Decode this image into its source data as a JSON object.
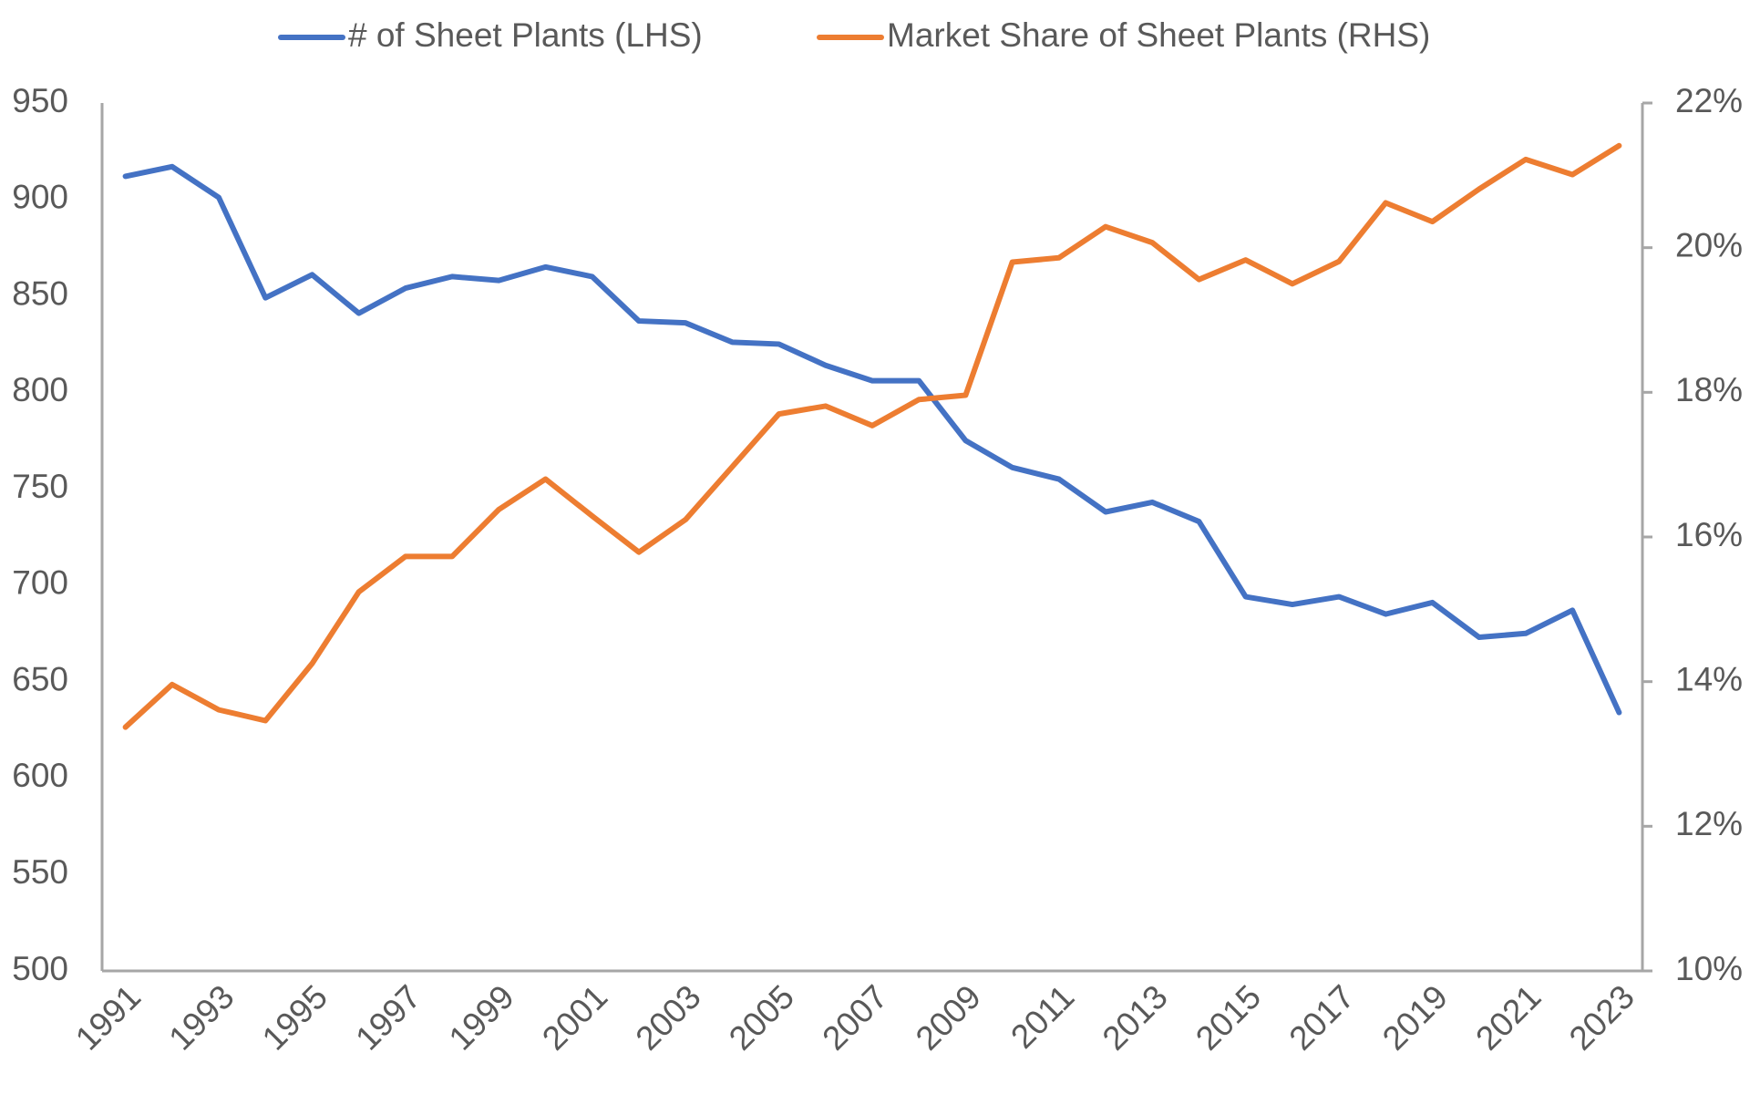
{
  "chart_data": {
    "type": "line",
    "categories": [
      "1991",
      null,
      "1993",
      null,
      "1995",
      null,
      "1997",
      null,
      "1999",
      null,
      "2001",
      null,
      "2003",
      null,
      "2005",
      null,
      "2007",
      null,
      "2009",
      null,
      "2011",
      null,
      "2013",
      null,
      "2015",
      null,
      "2017",
      null,
      "2019",
      null,
      "2021",
      null,
      "2023"
    ],
    "series": [
      {
        "name": "# of Sheet Plants (LHS)",
        "color": "#4472c4",
        "axis": "y",
        "values": [
          912,
          917,
          901,
          849,
          861,
          841,
          854,
          860,
          858,
          865,
          860,
          837,
          836,
          826,
          825,
          814,
          806,
          806,
          775,
          761,
          755,
          738,
          743,
          733,
          694,
          690,
          694,
          685,
          691,
          673,
          675,
          687,
          634
        ]
      },
      {
        "name": "Market Share of Sheet Plants (RHS)",
        "color": "#ed7d31",
        "axis": "y2",
        "values": [
          13.37,
          13.96,
          13.61,
          13.46,
          14.25,
          15.24,
          15.73,
          15.73,
          16.38,
          16.8,
          16.29,
          15.79,
          16.24,
          16.97,
          17.7,
          17.81,
          17.54,
          17.9,
          17.96,
          19.8,
          19.86,
          20.29,
          20.07,
          19.56,
          19.83,
          19.5,
          19.81,
          20.62,
          20.36,
          20.81,
          21.22,
          21.01,
          21.41
        ]
      }
    ],
    "ylim": [
      500,
      950
    ],
    "yticks": [
      500,
      550,
      600,
      650,
      700,
      750,
      800,
      850,
      900,
      950
    ],
    "y2lim": [
      10,
      22
    ],
    "y2ticks": [
      {
        "value": 10,
        "label": "10%"
      },
      {
        "value": 12,
        "label": "12%"
      },
      {
        "value": 14,
        "label": "14%"
      },
      {
        "value": 16,
        "label": "16%"
      },
      {
        "value": 18,
        "label": "18%"
      },
      {
        "value": 20,
        "label": "20%"
      },
      {
        "value": 22,
        "label": "22%"
      }
    ],
    "grid": false,
    "legend": "top"
  }
}
